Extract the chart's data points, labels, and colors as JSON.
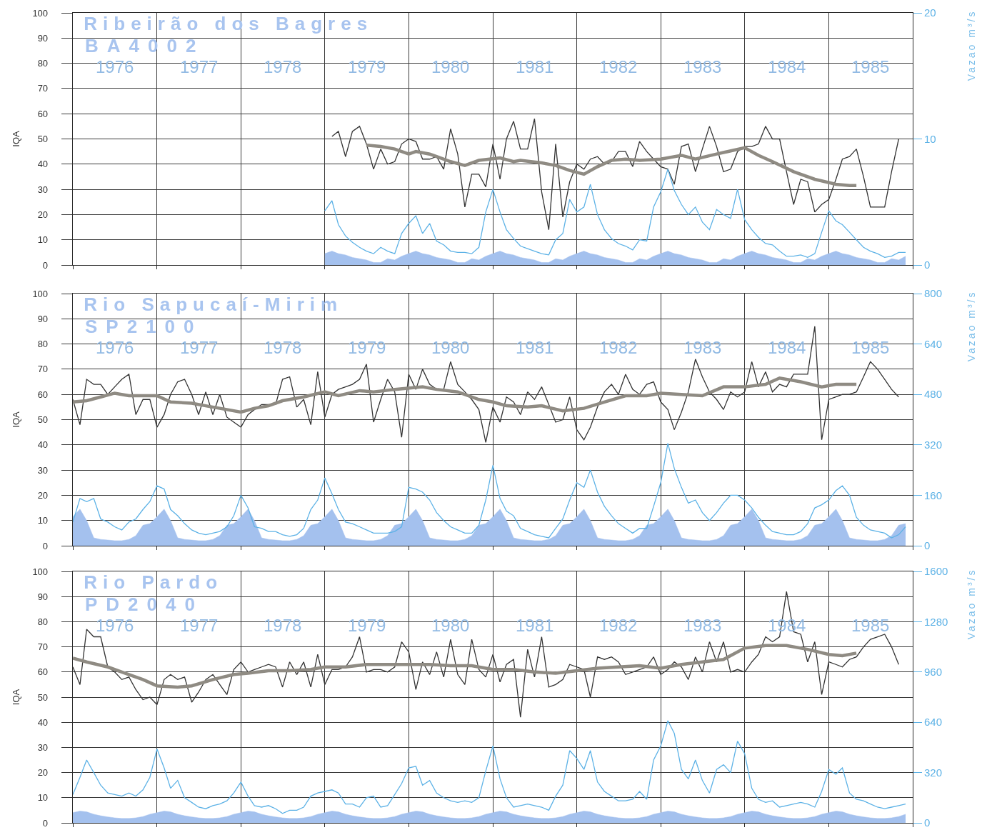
{
  "chart_data": [
    {
      "type": "line",
      "title": "Ribeirão dos Bagres",
      "subtitle": "BA4002",
      "ylabel": "IQA",
      "y2label": "Vazao m³/s",
      "x": [
        "1979-01",
        "1979-02",
        "1979-03",
        "1979-04",
        "1979-05",
        "1979-06",
        "1979-07",
        "1979-08",
        "1979-09",
        "1979-10",
        "1979-11",
        "1979-12",
        "1980-01",
        "1980-02",
        "1980-03",
        "1980-04",
        "1980-05",
        "1980-06",
        "1980-07",
        "1980-08",
        "1980-09",
        "1980-10",
        "1980-11",
        "1980-12",
        "1981-01",
        "1981-02",
        "1981-03",
        "1981-04",
        "1981-05",
        "1981-06",
        "1981-07",
        "1981-08",
        "1981-09",
        "1981-10",
        "1981-11",
        "1981-12",
        "1982-01",
        "1982-02",
        "1982-03",
        "1982-04",
        "1982-05",
        "1982-06",
        "1982-07",
        "1982-08",
        "1982-09",
        "1982-10",
        "1982-11",
        "1982-12",
        "1983-01",
        "1983-02",
        "1983-03",
        "1983-04",
        "1983-05",
        "1983-06",
        "1983-07",
        "1983-08",
        "1983-09",
        "1983-10",
        "1983-11",
        "1983-12",
        "1984-01",
        "1984-02",
        "1984-03",
        "1984-04",
        "1984-05",
        "1984-06",
        "1984-07",
        "1984-08",
        "1984-09",
        "1984-10",
        "1984-11",
        "1984-12",
        "1985-01",
        "1985-02",
        "1985-03",
        "1985-04",
        "1985-05",
        "1985-06",
        "1985-07",
        "1985-08",
        "1985-09",
        "1985-10",
        "1985-11",
        "1985-12"
      ],
      "xlim": [
        "1976-01",
        "1986-01"
      ],
      "xticks": [
        {
          "value": "1976",
          "label": null
        },
        {
          "value": "1977",
          "label": null
        },
        {
          "value": "1978",
          "label": null
        },
        {
          "value": "1979",
          "label": null
        },
        {
          "value": "1980",
          "label": null
        },
        {
          "value": "1981",
          "label": null
        },
        {
          "value": "1982",
          "label": null
        },
        {
          "value": "1983",
          "label": null
        },
        {
          "value": "1984",
          "label": null
        },
        {
          "value": "1985",
          "label": null
        },
        {
          "value": "1986",
          "label": null
        },
        {
          "value": "1976-07",
          "label": "1976"
        },
        {
          "value": "1977-07",
          "label": "1977"
        },
        {
          "value": "1978-07",
          "label": "1978"
        },
        {
          "value": "1979-07",
          "label": "1979"
        },
        {
          "value": "1980-07",
          "label": "1980"
        },
        {
          "value": "1981-07",
          "label": "1981"
        },
        {
          "value": "1982-07",
          "label": "1982"
        },
        {
          "value": "1983-07",
          "label": "1983"
        },
        {
          "value": "1984-07",
          "label": "1984"
        },
        {
          "value": "1985-07",
          "label": "1985"
        }
      ],
      "ylim": [
        0,
        100
      ],
      "yticks": [
        0,
        10,
        20,
        30,
        40,
        50,
        60,
        70,
        80,
        90,
        100
      ],
      "y2lim": [
        0,
        20
      ],
      "y2ticks": [
        0,
        10,
        20
      ],
      "grid": true,
      "series": [
        {
          "type": "area",
          "axis": "y2",
          "color": "#a4c1ee",
          "values": [
            0.9,
            1.1,
            0.9,
            0.8,
            0.6,
            0.5,
            0.4,
            0.2,
            0.2,
            0.5,
            0.4,
            0.7,
            0.9,
            1.1,
            0.9,
            0.8,
            0.6,
            0.5,
            0.4,
            0.2,
            0.2,
            0.5,
            0.4,
            0.7,
            0.9,
            1.1,
            0.9,
            0.8,
            0.6,
            0.5,
            0.4,
            0.2,
            0.2,
            0.5,
            0.4,
            0.7,
            0.9,
            1.1,
            0.9,
            0.8,
            0.6,
            0.5,
            0.4,
            0.2,
            0.2,
            0.5,
            0.4,
            0.7,
            0.9,
            1.1,
            0.9,
            0.8,
            0.6,
            0.5,
            0.4,
            0.2,
            0.2,
            0.5,
            0.4,
            0.7,
            0.9,
            1.1,
            0.9,
            0.8,
            0.6,
            0.5,
            0.4,
            0.2,
            0.2,
            0.5,
            0.4,
            0.7,
            0.9,
            1.1,
            0.9,
            0.8,
            0.6,
            0.5,
            0.4,
            0.2,
            0.2,
            0.5,
            0.4,
            0.7
          ]
        },
        {
          "axis": "y2",
          "color": "#5db2e6",
          "values": [
            4.3,
            5.1,
            3.2,
            2.3,
            1.8,
            1.4,
            1.1,
            0.9,
            1.4,
            1.1,
            0.9,
            2.5,
            3.3,
            3.9,
            2.5,
            3.3,
            1.9,
            1.6,
            1.1,
            1.0,
            1.0,
            0.9,
            1.4,
            4.2,
            6.0,
            4.2,
            2.8,
            2.1,
            1.5,
            1.3,
            1.1,
            0.9,
            0.8,
            2.0,
            2.5,
            5.2,
            4.2,
            4.6,
            6.4,
            4.0,
            2.8,
            2.1,
            1.7,
            1.5,
            1.2,
            2.0,
            1.9,
            4.6,
            5.8,
            7.6,
            5.9,
            4.8,
            4.0,
            4.6,
            3.4,
            2.8,
            4.4,
            4.0,
            3.7,
            6.0,
            3.6,
            2.8,
            2.2,
            1.7,
            1.6,
            1.1,
            0.7,
            0.7,
            0.8,
            0.6,
            0.9,
            2.6,
            4.3,
            3.5,
            3.2,
            2.6,
            2.0,
            1.4,
            1.1,
            0.9,
            0.6,
            0.7,
            1.0,
            1.0
          ]
        },
        {
          "color": "#333333",
          "values": [
            null,
            51,
            53,
            43,
            53,
            55,
            48,
            38,
            46,
            40,
            41,
            48,
            50,
            49,
            42,
            42,
            43,
            38,
            54,
            44,
            23,
            36,
            36,
            31,
            48,
            34,
            50,
            57,
            46,
            46,
            58,
            29,
            14,
            48,
            19,
            33,
            40,
            38,
            42,
            43,
            40,
            41,
            45,
            45,
            39,
            49,
            45,
            42,
            39,
            38,
            32,
            47,
            48,
            37,
            46,
            55,
            47,
            37,
            38,
            45,
            47,
            47,
            48,
            55,
            50,
            50,
            37,
            24,
            34,
            33,
            21,
            24,
            26,
            34,
            42,
            43,
            46,
            35,
            23,
            23,
            23,
            37,
            50,
            null
          ]
        },
        {
          "color": "#8f8b83",
          "x": [
            "1979-07",
            "1979-09",
            "1979-11",
            "1980-01",
            "1980-02",
            "1980-04",
            "1980-05",
            "1980-07",
            "1980-09",
            "1980-11",
            "1981-02",
            "1981-04",
            "1981-05",
            "1981-08",
            "1981-10",
            "1981-12",
            "1982-02",
            "1982-04",
            "1982-06",
            "1982-08",
            "1982-10",
            "1983-01",
            "1983-04",
            "1983-06",
            "1983-09",
            "1984-01",
            "1984-03",
            "1984-05",
            "1984-08",
            "1984-11",
            "1985-02",
            "1985-04",
            "1985-05"
          ],
          "values": [
            47.5,
            47,
            46,
            44,
            45,
            44,
            43,
            41,
            39.5,
            41.5,
            42.5,
            41,
            41.5,
            40.5,
            39.5,
            37.5,
            36,
            39,
            41.5,
            42,
            41.5,
            42,
            43.5,
            42,
            44,
            46.5,
            43.5,
            41,
            37,
            34,
            32,
            31.5,
            31.5
          ]
        }
      ]
    },
    {
      "type": "line",
      "title": "Rio Sapucaí-Mirim",
      "subtitle": "SP2100",
      "ylabel": "IQA",
      "y2label": "Vazao m³/s",
      "x": [
        "1976-01",
        "1976-02",
        "1976-03",
        "1976-04",
        "1976-05",
        "1976-06",
        "1976-07",
        "1976-08",
        "1976-09",
        "1976-10",
        "1976-11",
        "1976-12",
        "1977-01",
        "1977-02",
        "1977-03",
        "1977-04",
        "1977-05",
        "1977-06",
        "1977-07",
        "1977-08",
        "1977-09",
        "1977-10",
        "1977-11",
        "1977-12",
        "1978-01",
        "1978-02",
        "1978-03",
        "1978-04",
        "1978-05",
        "1978-06",
        "1978-07",
        "1978-08",
        "1978-09",
        "1978-10",
        "1978-11",
        "1978-12",
        "1979-01",
        "1979-02",
        "1979-03",
        "1979-04",
        "1979-05",
        "1979-06",
        "1979-07",
        "1979-08",
        "1979-09",
        "1979-10",
        "1979-11",
        "1979-12",
        "1980-01",
        "1980-02",
        "1980-03",
        "1980-04",
        "1980-05",
        "1980-06",
        "1980-07",
        "1980-08",
        "1980-09",
        "1980-10",
        "1980-11",
        "1980-12",
        "1981-01",
        "1981-02",
        "1981-03",
        "1981-04",
        "1981-05",
        "1981-06",
        "1981-07",
        "1981-08",
        "1981-09",
        "1981-10",
        "1981-11",
        "1981-12",
        "1982-01",
        "1982-02",
        "1982-03",
        "1982-04",
        "1982-05",
        "1982-06",
        "1982-07",
        "1982-08",
        "1982-09",
        "1982-10",
        "1982-11",
        "1982-12",
        "1983-01",
        "1983-02",
        "1983-03",
        "1983-04",
        "1983-05",
        "1983-06",
        "1983-07",
        "1983-08",
        "1983-09",
        "1983-10",
        "1983-11",
        "1983-12",
        "1984-01",
        "1984-02",
        "1984-03",
        "1984-04",
        "1984-05",
        "1984-06",
        "1984-07",
        "1984-08",
        "1984-09",
        "1984-10",
        "1984-11",
        "1984-12",
        "1985-01",
        "1985-02",
        "1985-03",
        "1985-04",
        "1985-05",
        "1985-06",
        "1985-07",
        "1985-08",
        "1985-09",
        "1985-10",
        "1985-11",
        "1985-12"
      ],
      "xlim": [
        "1976-01",
        "1986-01"
      ],
      "xticks": [
        {
          "value": "1976",
          "label": null
        },
        {
          "value": "1977",
          "label": null
        },
        {
          "value": "1978",
          "label": null
        },
        {
          "value": "1979",
          "label": null
        },
        {
          "value": "1980",
          "label": null
        },
        {
          "value": "1981",
          "label": null
        },
        {
          "value": "1982",
          "label": null
        },
        {
          "value": "1983",
          "label": null
        },
        {
          "value": "1984",
          "label": null
        },
        {
          "value": "1985",
          "label": null
        },
        {
          "value": "1986",
          "label": null
        },
        {
          "value": "1976-07",
          "label": "1976"
        },
        {
          "value": "1977-07",
          "label": "1977"
        },
        {
          "value": "1978-07",
          "label": "1978"
        },
        {
          "value": "1979-07",
          "label": "1979"
        },
        {
          "value": "1980-07",
          "label": "1980"
        },
        {
          "value": "1981-07",
          "label": "1981"
        },
        {
          "value": "1982-07",
          "label": "1982"
        },
        {
          "value": "1983-07",
          "label": "1983"
        },
        {
          "value": "1984-07",
          "label": "1984"
        },
        {
          "value": "1985-07",
          "label": "1985"
        }
      ],
      "ylim": [
        0,
        100
      ],
      "yticks": [
        0,
        10,
        20,
        30,
        40,
        50,
        60,
        70,
        80,
        90,
        100
      ],
      "y2lim": [
        0,
        800
      ],
      "y2ticks": [
        0,
        160,
        320,
        480,
        640,
        800
      ],
      "grid": true,
      "series": [
        {
          "type": "area",
          "axis": "y2",
          "color": "#a4c1ee",
          "values": [
            92,
            116,
            80,
            25,
            20,
            18,
            16,
            16,
            20,
            32,
            65,
            70,
            92,
            116,
            80,
            25,
            20,
            18,
            16,
            16,
            20,
            32,
            65,
            70,
            92,
            116,
            80,
            25,
            20,
            18,
            16,
            16,
            20,
            32,
            65,
            70,
            92,
            116,
            80,
            25,
            20,
            18,
            16,
            16,
            20,
            32,
            65,
            70,
            92,
            116,
            80,
            25,
            20,
            18,
            16,
            16,
            20,
            32,
            65,
            70,
            92,
            116,
            80,
            25,
            20,
            18,
            16,
            16,
            20,
            32,
            65,
            70,
            92,
            116,
            80,
            25,
            20,
            18,
            16,
            16,
            20,
            32,
            65,
            70,
            92,
            116,
            80,
            25,
            20,
            18,
            16,
            16,
            20,
            32,
            65,
            70,
            92,
            116,
            80,
            25,
            20,
            18,
            16,
            16,
            20,
            32,
            65,
            70,
            92,
            116,
            80,
            25,
            20,
            18,
            16,
            16,
            20,
            32,
            65,
            70
          ]
        },
        {
          "axis": "y2",
          "color": "#5db2e6",
          "values": [
            75,
            150,
            140,
            150,
            85,
            75,
            60,
            50,
            75,
            85,
            115,
            140,
            190,
            180,
            115,
            95,
            70,
            50,
            40,
            35,
            40,
            45,
            60,
            95,
            160,
            120,
            60,
            55,
            45,
            45,
            35,
            30,
            35,
            55,
            115,
            145,
            215,
            165,
            115,
            75,
            70,
            60,
            50,
            40,
            40,
            40,
            45,
            60,
            185,
            180,
            170,
            145,
            105,
            80,
            60,
            50,
            40,
            40,
            65,
            145,
            255,
            150,
            110,
            95,
            55,
            45,
            35,
            30,
            25,
            55,
            85,
            145,
            200,
            185,
            240,
            170,
            125,
            95,
            70,
            55,
            40,
            55,
            55,
            125,
            200,
            325,
            245,
            185,
            135,
            145,
            105,
            80,
            105,
            135,
            160,
            160,
            145,
            120,
            90,
            65,
            45,
            40,
            35,
            35,
            45,
            70,
            120,
            130,
            145,
            175,
            190,
            160,
            90,
            65,
            50,
            45,
            40,
            25,
            35,
            60
          ]
        },
        {
          "color": "#333333",
          "values": [
            58,
            48,
            66,
            64,
            64,
            60,
            63,
            66,
            68,
            52,
            58,
            58,
            47,
            52,
            60,
            65,
            66,
            60,
            52,
            61,
            52,
            60,
            51,
            49,
            47,
            52,
            54,
            56,
            56,
            56,
            66,
            67,
            55,
            58,
            48,
            69,
            51,
            60,
            62,
            63,
            64,
            66,
            72,
            49,
            58,
            66,
            61,
            43,
            68,
            62,
            70,
            64,
            62,
            62,
            73,
            64,
            61,
            58,
            54,
            41,
            55,
            49,
            59,
            57,
            52,
            61,
            58,
            63,
            56,
            49,
            50,
            59,
            46,
            42,
            47,
            55,
            61,
            64,
            60,
            68,
            62,
            60,
            64,
            65,
            57,
            54,
            46,
            53,
            61,
            74,
            67,
            61,
            58,
            54,
            61,
            59,
            61,
            73,
            63,
            69,
            61,
            64,
            63,
            68,
            68,
            68,
            87,
            42,
            58,
            59,
            60,
            60,
            61,
            67,
            73,
            70,
            66,
            62,
            59,
            null
          ]
        },
        {
          "color": "#8f8b83",
          "x": [
            "1976-01",
            "1976-03",
            "1976-05",
            "1976-07",
            "1976-09",
            "1977-01",
            "1977-03",
            "1977-06",
            "1977-08",
            "1977-10",
            "1978-01",
            "1978-03",
            "1978-05",
            "1978-07",
            "1978-10",
            "1979-01",
            "1979-03",
            "1979-06",
            "1979-08",
            "1979-11",
            "1980-03",
            "1980-05",
            "1980-08",
            "1980-11",
            "1981-01",
            "1981-03",
            "1981-06",
            "1981-08",
            "1981-11",
            "1982-02",
            "1982-05",
            "1982-08",
            "1982-11",
            "1983-01",
            "1983-04",
            "1983-07",
            "1983-10",
            "1984-01",
            "1984-04",
            "1984-06",
            "1984-09",
            "1984-12",
            "1985-02",
            "1985-05"
          ],
          "values": [
            57,
            57.5,
            59,
            60.5,
            59.5,
            59.5,
            57,
            56.5,
            55.5,
            54.5,
            53,
            54.5,
            55.5,
            57.5,
            59,
            61,
            59.5,
            61.5,
            61,
            62,
            63,
            62,
            61,
            58,
            57,
            55.5,
            55,
            55.5,
            53.5,
            54.5,
            57,
            59.5,
            59.5,
            60.5,
            60,
            59.5,
            63,
            63,
            64,
            66.5,
            65,
            63,
            64,
            64
          ]
        }
      ]
    },
    {
      "type": "line",
      "title": "Rio Pardo",
      "subtitle": "PD2040",
      "ylabel": "IQA",
      "y2label": "Vazao m³/s",
      "x": [
        "1976-01",
        "1976-02",
        "1976-03",
        "1976-04",
        "1976-05",
        "1976-06",
        "1976-07",
        "1976-08",
        "1976-09",
        "1976-10",
        "1976-11",
        "1976-12",
        "1977-01",
        "1977-02",
        "1977-03",
        "1977-04",
        "1977-05",
        "1977-06",
        "1977-07",
        "1977-08",
        "1977-09",
        "1977-10",
        "1977-11",
        "1977-12",
        "1978-01",
        "1978-02",
        "1978-03",
        "1978-04",
        "1978-05",
        "1978-06",
        "1978-07",
        "1978-08",
        "1978-09",
        "1978-10",
        "1978-11",
        "1978-12",
        "1979-01",
        "1979-02",
        "1979-03",
        "1979-04",
        "1979-05",
        "1979-06",
        "1979-07",
        "1979-08",
        "1979-09",
        "1979-10",
        "1979-11",
        "1979-12",
        "1980-01",
        "1980-02",
        "1980-03",
        "1980-04",
        "1980-05",
        "1980-06",
        "1980-07",
        "1980-08",
        "1980-09",
        "1980-10",
        "1980-11",
        "1980-12",
        "1981-01",
        "1981-02",
        "1981-03",
        "1981-04",
        "1981-05",
        "1981-06",
        "1981-07",
        "1981-08",
        "1981-09",
        "1981-10",
        "1981-11",
        "1981-12",
        "1982-01",
        "1982-02",
        "1982-03",
        "1982-04",
        "1982-05",
        "1982-06",
        "1982-07",
        "1982-08",
        "1982-09",
        "1982-10",
        "1982-11",
        "1982-12",
        "1983-01",
        "1983-02",
        "1983-03",
        "1983-04",
        "1983-05",
        "1983-06",
        "1983-07",
        "1983-08",
        "1983-09",
        "1983-10",
        "1983-11",
        "1983-12",
        "1984-01",
        "1984-02",
        "1984-03",
        "1984-04",
        "1984-05",
        "1984-06",
        "1984-07",
        "1984-08",
        "1984-09",
        "1984-10",
        "1984-11",
        "1984-12",
        "1985-01",
        "1985-02",
        "1985-03",
        "1985-04",
        "1985-05",
        "1985-06",
        "1985-07",
        "1985-08",
        "1985-09",
        "1985-10",
        "1985-11",
        "1985-12"
      ],
      "xlim": [
        "1976-01",
        "1986-01"
      ],
      "xticks": [
        {
          "value": "1976",
          "label": null
        },
        {
          "value": "1977",
          "label": null
        },
        {
          "value": "1978",
          "label": null
        },
        {
          "value": "1979",
          "label": null
        },
        {
          "value": "1980",
          "label": null
        },
        {
          "value": "1981",
          "label": null
        },
        {
          "value": "1982",
          "label": null
        },
        {
          "value": "1983",
          "label": null
        },
        {
          "value": "1984",
          "label": null
        },
        {
          "value": "1985",
          "label": null
        },
        {
          "value": "1986",
          "label": null
        },
        {
          "value": "1976-07",
          "label": "1976"
        },
        {
          "value": "1977-07",
          "label": "1977"
        },
        {
          "value": "1978-07",
          "label": "1978"
        },
        {
          "value": "1979-07",
          "label": "1979"
        },
        {
          "value": "1980-07",
          "label": "1980"
        },
        {
          "value": "1981-07",
          "label": "1981"
        },
        {
          "value": "1982-07",
          "label": "1982"
        },
        {
          "value": "1983-07",
          "label": "1983"
        },
        {
          "value": "1984-07",
          "label": "1984"
        },
        {
          "value": "1985-07",
          "label": "1985"
        }
      ],
      "ylim": [
        0,
        100
      ],
      "yticks": [
        0,
        10,
        20,
        30,
        40,
        50,
        60,
        70,
        80,
        90,
        100
      ],
      "y2lim": [
        0,
        1600
      ],
      "y2ticks": [
        0,
        320,
        640,
        960,
        1280,
        1600
      ],
      "grid": true,
      "series": [
        {
          "type": "area",
          "axis": "y2",
          "color": "#a4c1ee",
          "values": [
            65,
            75,
            70,
            55,
            45,
            38,
            32,
            28,
            28,
            32,
            40,
            55,
            65,
            75,
            70,
            55,
            45,
            38,
            32,
            28,
            28,
            32,
            40,
            55,
            65,
            75,
            70,
            55,
            45,
            38,
            32,
            28,
            28,
            32,
            40,
            55,
            65,
            75,
            70,
            55,
            45,
            38,
            32,
            28,
            28,
            32,
            40,
            55,
            65,
            75,
            70,
            55,
            45,
            38,
            32,
            28,
            28,
            32,
            40,
            55,
            65,
            75,
            70,
            55,
            45,
            38,
            32,
            28,
            28,
            32,
            40,
            55,
            65,
            75,
            70,
            55,
            45,
            38,
            32,
            28,
            28,
            32,
            40,
            55,
            65,
            75,
            70,
            55,
            45,
            38,
            32,
            28,
            28,
            32,
            40,
            55,
            65,
            75,
            70,
            55,
            45,
            38,
            32,
            28,
            28,
            32,
            40,
            55,
            65,
            75,
            70,
            55,
            45,
            38,
            32,
            28,
            28,
            32,
            40,
            55
          ]
        },
        {
          "axis": "y2",
          "color": "#5db2e6",
          "values": [
            180,
            290,
            400,
            320,
            240,
            190,
            180,
            170,
            190,
            170,
            210,
            290,
            470,
            350,
            220,
            270,
            160,
            130,
            100,
            90,
            110,
            120,
            140,
            190,
            260,
            170,
            110,
            100,
            110,
            90,
            60,
            80,
            80,
            100,
            170,
            190,
            200,
            210,
            190,
            120,
            120,
            100,
            160,
            170,
            100,
            110,
            180,
            250,
            350,
            360,
            240,
            270,
            190,
            160,
            140,
            130,
            140,
            130,
            160,
            330,
            490,
            280,
            160,
            100,
            110,
            120,
            110,
            100,
            80,
            170,
            240,
            460,
            410,
            340,
            460,
            260,
            200,
            170,
            140,
            140,
            150,
            200,
            150,
            400,
            490,
            650,
            570,
            340,
            280,
            400,
            270,
            190,
            340,
            370,
            320,
            520,
            440,
            220,
            150,
            130,
            140,
            100,
            110,
            120,
            130,
            120,
            100,
            200,
            340,
            310,
            350,
            190,
            150,
            140,
            120,
            100,
            90,
            100,
            110,
            120
          ]
        },
        {
          "color": "#333333",
          "values": [
            62,
            55,
            77,
            74,
            74,
            62,
            60,
            57,
            58,
            53,
            49,
            50,
            47,
            57,
            59,
            57,
            58,
            48,
            52,
            57,
            59,
            55,
            51,
            61,
            64,
            60,
            61,
            62,
            63,
            62,
            54,
            64,
            59,
            64,
            54,
            67,
            55,
            61,
            61,
            62,
            66,
            74,
            60,
            61,
            61,
            60,
            62,
            72,
            68,
            53,
            64,
            59,
            68,
            58,
            73,
            59,
            55,
            73,
            61,
            58,
            67,
            56,
            63,
            65,
            42,
            69,
            58,
            74,
            54,
            55,
            57,
            63,
            62,
            61,
            50,
            66,
            65,
            66,
            64,
            59,
            60,
            61,
            62,
            66,
            59,
            61,
            64,
            62,
            57,
            66,
            60,
            72,
            64,
            72,
            60,
            61,
            60,
            64,
            67,
            74,
            72,
            74,
            92,
            76,
            75,
            64,
            72,
            51,
            64,
            63,
            62,
            65,
            66,
            70,
            73,
            74,
            75,
            70,
            63,
            null
          ]
        },
        {
          "color": "#8f8b83",
          "x": [
            "1976-01",
            "1976-03",
            "1976-06",
            "1976-08",
            "1976-11",
            "1977-01",
            "1977-04",
            "1977-06",
            "1977-09",
            "1977-12",
            "1978-02",
            "1978-05",
            "1978-08",
            "1978-11",
            "1979-01",
            "1979-04",
            "1979-07",
            "1979-10",
            "1980-01",
            "1980-04",
            "1980-07",
            "1980-10",
            "1981-01",
            "1981-04",
            "1981-07",
            "1981-10",
            "1982-01",
            "1982-04",
            "1982-07",
            "1982-10",
            "1983-01",
            "1983-04",
            "1983-07",
            "1983-10",
            "1984-01",
            "1984-04",
            "1984-07",
            "1984-10",
            "1985-01",
            "1985-03",
            "1985-05"
          ],
          "values": [
            65.5,
            64,
            62,
            60,
            57,
            54.5,
            54,
            54.5,
            57,
            59,
            59.5,
            60.5,
            60.5,
            61,
            62,
            62,
            63,
            63,
            63,
            63,
            62.5,
            62.5,
            61,
            61,
            60,
            59.5,
            60.5,
            61.5,
            62,
            62.5,
            61.5,
            63,
            64,
            65,
            69.5,
            70.5,
            70.5,
            69,
            67,
            66.5,
            67.5
          ]
        }
      ]
    }
  ]
}
